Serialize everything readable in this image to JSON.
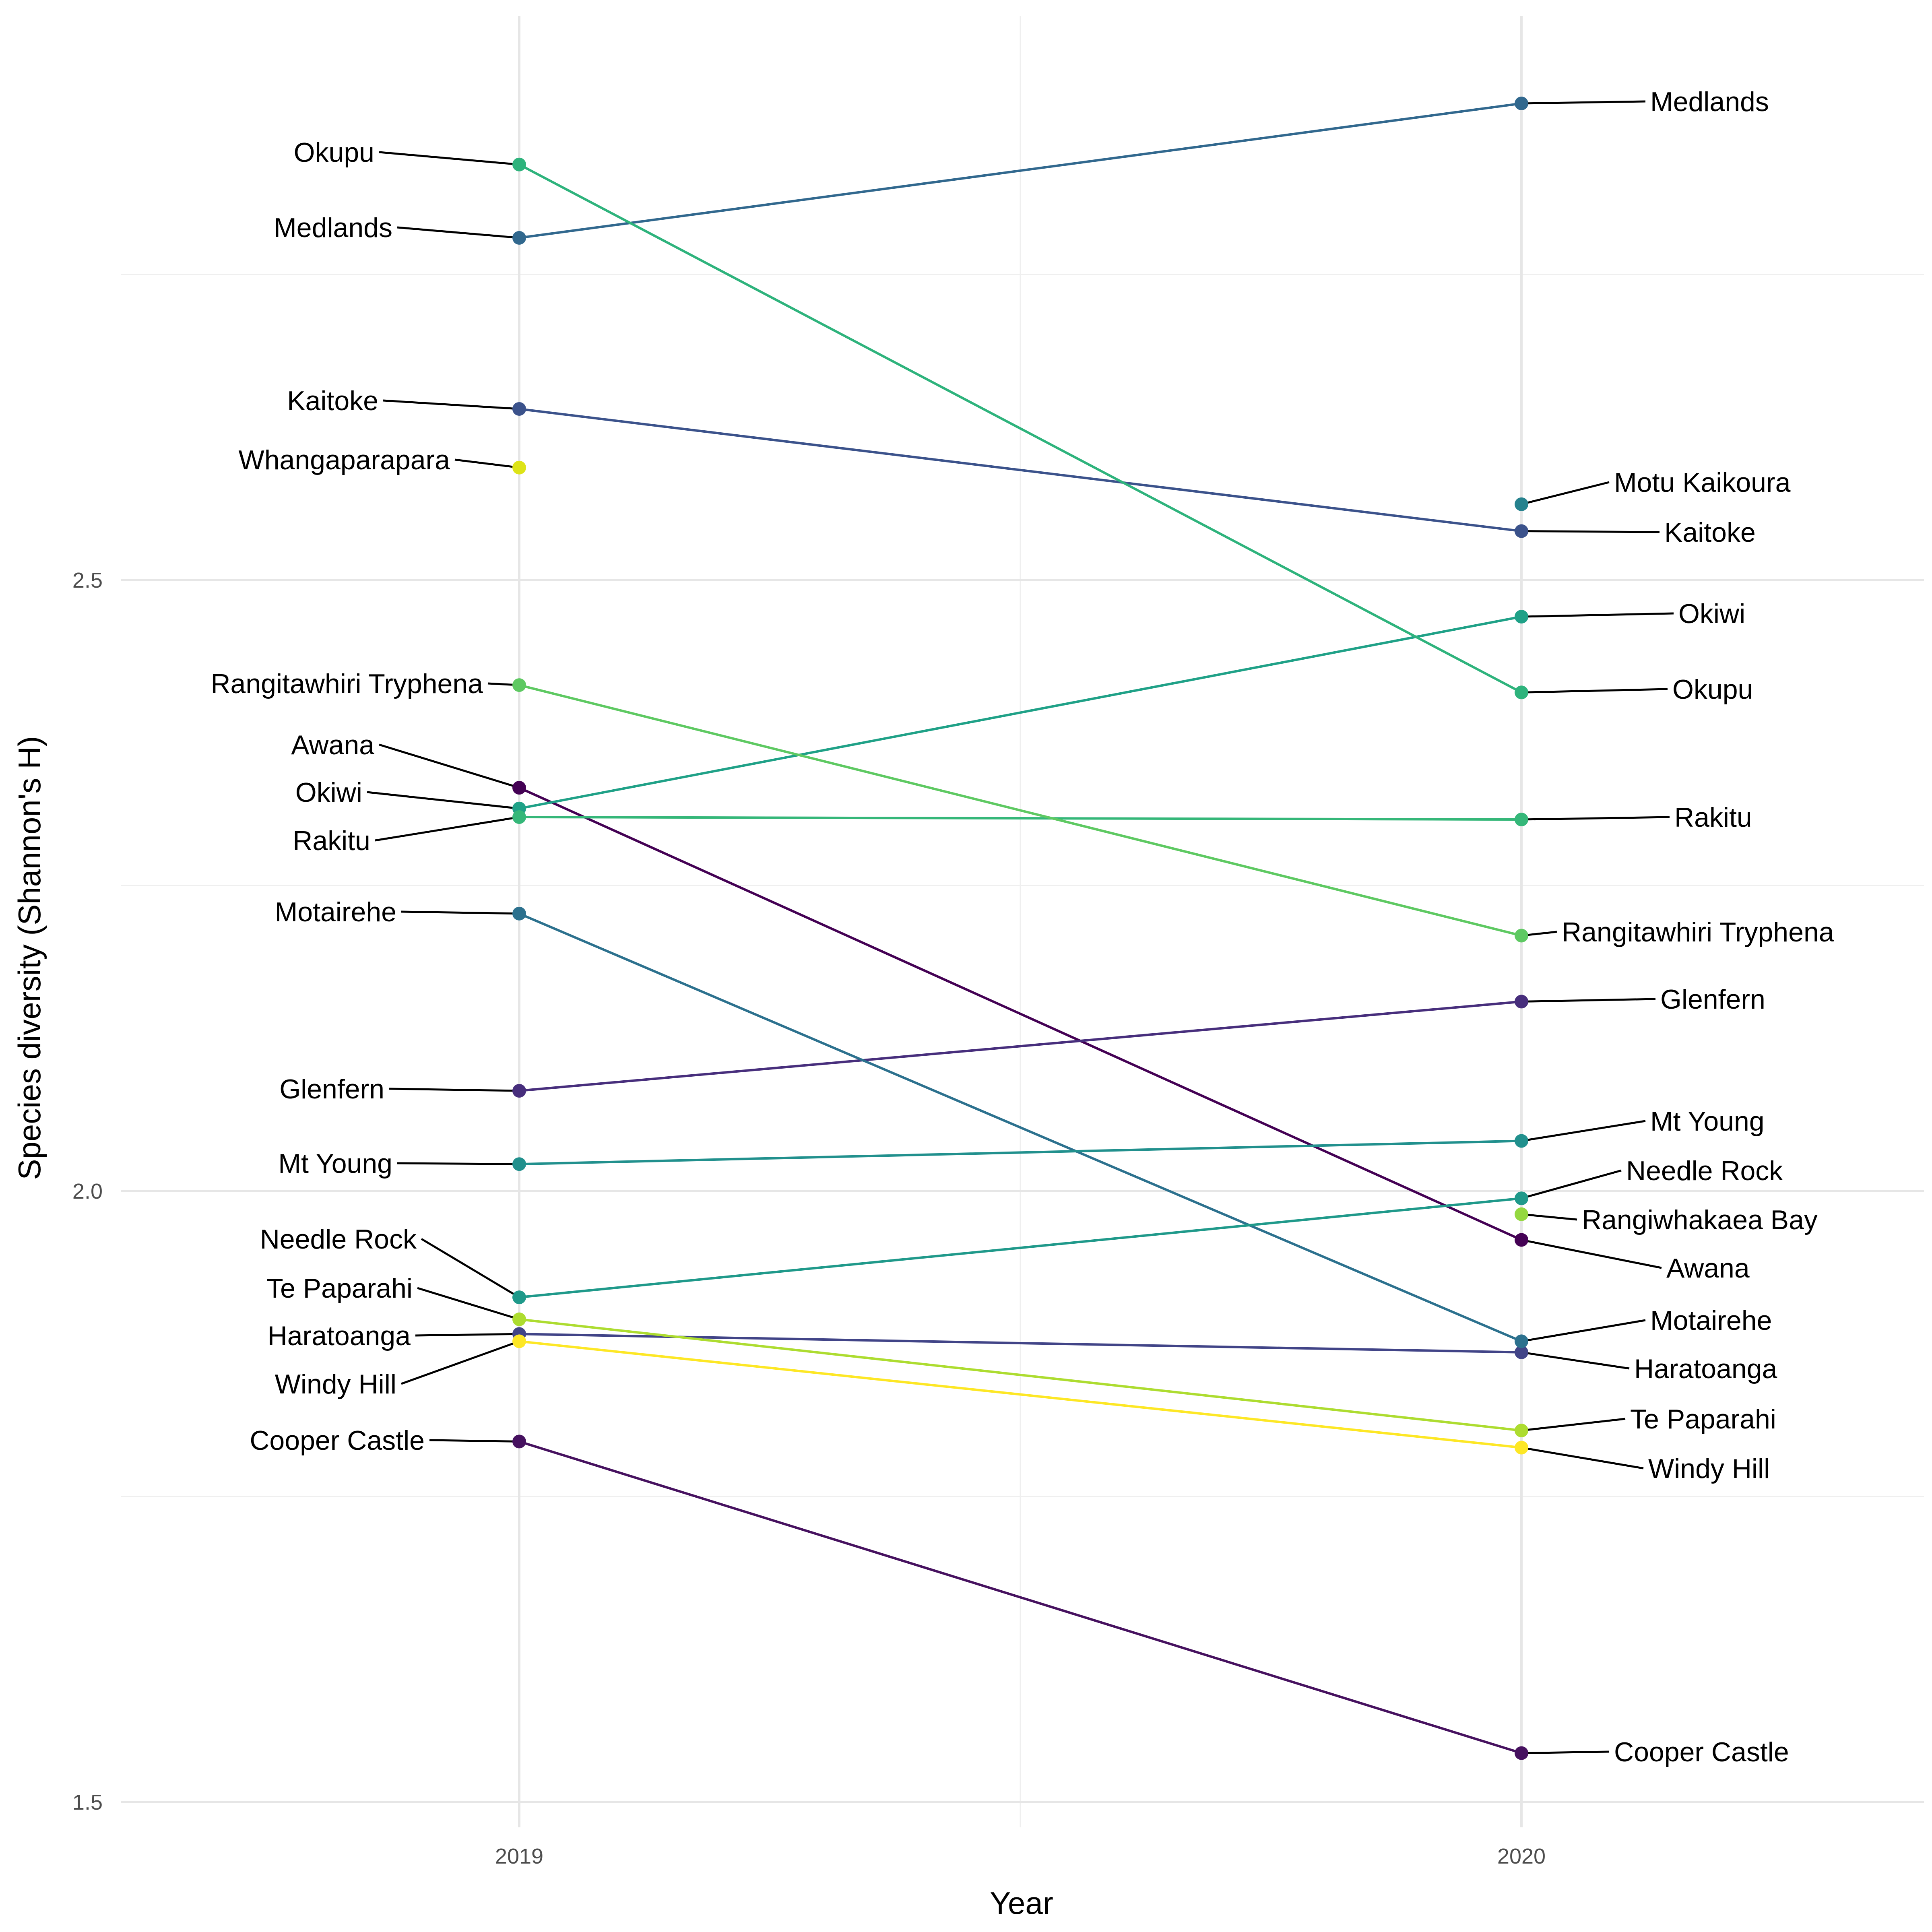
{
  "chart_data": {
    "type": "line",
    "xlabel": "Year",
    "ylabel": "Species diversity (Shannon's H)",
    "x": [
      "2019",
      "2020"
    ],
    "ylim": [
      1.48,
      2.95
    ],
    "y_ticks": [
      "1.5",
      "2.0",
      "2.5"
    ],
    "grid": true,
    "legend": "none (direct labels)",
    "series": [
      {
        "name": "Awana",
        "color": "#440154",
        "values": [
          2.33,
          1.96
        ]
      },
      {
        "name": "Cooper Castle",
        "color": "#46115f",
        "values": [
          1.795,
          1.54
        ]
      },
      {
        "name": "Glenfern",
        "color": "#472e7c",
        "values": [
          2.082,
          2.155
        ]
      },
      {
        "name": "Haratoanga",
        "color": "#414487",
        "values": [
          1.883,
          1.868
        ]
      },
      {
        "name": "Kaitoke",
        "color": "#3b528b",
        "values": [
          2.64,
          2.54
        ]
      },
      {
        "name": "Medlands",
        "color": "#31688e",
        "values": [
          2.78,
          2.89
        ]
      },
      {
        "name": "Motairehe",
        "color": "#2c718e",
        "values": [
          2.227,
          1.877
        ]
      },
      {
        "name": "Motu Kaikoura",
        "color": "#26828e",
        "values": [
          null,
          2.562
        ]
      },
      {
        "name": "Mt Young",
        "color": "#21908d",
        "values": [
          2.022,
          2.041
        ]
      },
      {
        "name": "Needle Rock",
        "color": "#1f998a",
        "values": [
          1.913,
          1.994
        ]
      },
      {
        "name": "Okiwi",
        "color": "#1fa187",
        "values": [
          2.313,
          2.47
        ]
      },
      {
        "name": "Okupu",
        "color": "#2eb37c",
        "values": [
          2.84,
          2.408
        ]
      },
      {
        "name": "Rakitu",
        "color": "#35b779",
        "values": [
          2.306,
          2.304
        ]
      },
      {
        "name": "Rangitawhiri Tryphena",
        "color": "#5ec962",
        "values": [
          2.414,
          2.209
        ]
      },
      {
        "name": "Rangiwhakaea Bay",
        "color": "#94d840",
        "values": [
          null,
          1.981
        ]
      },
      {
        "name": "Te Paparahi",
        "color": "#addc30",
        "values": [
          1.895,
          1.804
        ]
      },
      {
        "name": "Whangaparapara",
        "color": "#dde318",
        "values": [
          2.592,
          null
        ]
      },
      {
        "name": "Windy Hill",
        "color": "#fde725",
        "values": [
          1.877,
          1.79
        ]
      }
    ],
    "labels_2019": [
      "Okupu",
      "Medlands",
      "Kaitoke",
      "Whangaparapara",
      "Rangitawhiri Tryphena",
      "Awana",
      "Okiwi",
      "Rakitu",
      "Motairehe",
      "Glenfern",
      "Mt Young",
      "Needle Rock",
      "Te Paparahi",
      "Haratoanga",
      "Windy Hill",
      "Cooper Castle"
    ],
    "labels_2020": [
      "Medlands",
      "Motu Kaikoura",
      "Kaitoke",
      "Okiwi",
      "Okupu",
      "Rakitu",
      "Rangitawhiri Tryphena",
      "Glenfern",
      "Mt Young",
      "Needle Rock",
      "Rangiwhakaea Bay",
      "Awana",
      "Motairehe",
      "Haratoanga",
      "Te Paparahi",
      "Windy Hill",
      "Cooper Castle"
    ]
  }
}
